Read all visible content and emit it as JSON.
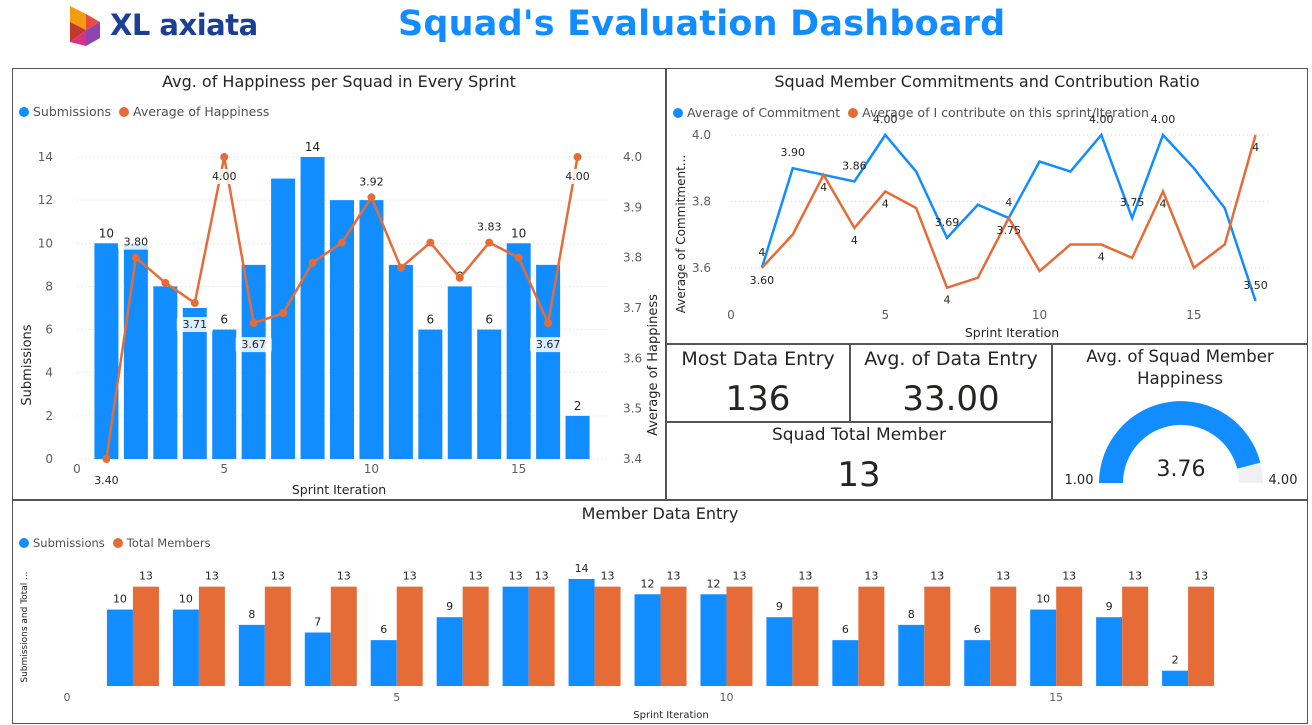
{
  "header": {
    "logo_text": "XL axiata",
    "title": "Squad's Evaluation Dashboard"
  },
  "colors": {
    "blue": "#118dff",
    "orange": "#e66c37",
    "title_blue": "#118dff",
    "logo_navy": "#1a3f95"
  },
  "happiness_chart": {
    "title": "Avg. of Happiness per Squad in Every Sprint",
    "legend": [
      "Submissions",
      "Average of Happiness"
    ],
    "xlabel": "Sprint Iteration",
    "ylabel_left": "Submissions",
    "ylabel_right": "Average of Happiness"
  },
  "commit_chart": {
    "title": "Squad Member Commitments and Contribution Ratio",
    "legend": [
      "Average of Commitment",
      "Average of I contribute on this sprint/Iteration"
    ],
    "xlabel": "Sprint Iteration",
    "ylabel": "Average of Commitment..."
  },
  "cards": {
    "most_entry_title": "Most Data Entry",
    "most_entry_value": "136",
    "avg_entry_title": "Avg. of Data Entry",
    "avg_entry_value": "33.00",
    "total_member_title": "Squad Total Member",
    "total_member_value": "13"
  },
  "gauge": {
    "title": "Avg. of Squad Member Happiness",
    "value_label": "3.76",
    "min_label": "1.00",
    "max_label": "4.00",
    "value": 3.76,
    "min": 1.0,
    "max": 4.0
  },
  "member_chart": {
    "title": "Member Data Entry",
    "legend": [
      "Submissions",
      "Total Members"
    ],
    "xlabel": "Sprint Iteration",
    "ylabel": "Submissions and Total ..."
  },
  "chart_data": [
    {
      "type": "bar",
      "title": "Avg. of Happiness per Squad in Every Sprint",
      "x": [
        1,
        2,
        3,
        4,
        5,
        6,
        7,
        8,
        9,
        10,
        11,
        12,
        13,
        14,
        15,
        16,
        17
      ],
      "xticks": [
        0,
        5,
        10,
        15
      ],
      "xlim": [
        0,
        18
      ],
      "series": [
        {
          "name": "Submissions",
          "kind": "bar",
          "axis": "left",
          "values": [
            10,
            10,
            8,
            7,
            6,
            9,
            13,
            14,
            12,
            12,
            9,
            6,
            8,
            6,
            10,
            9,
            2
          ],
          "labels": {
            "1": "10",
            "8": "14",
            "12": "6",
            "14": "6",
            "15": "10",
            "17": "2",
            "13": "8",
            "5": "6"
          }
        },
        {
          "name": "Average of Happiness",
          "kind": "line",
          "axis": "right",
          "values": [
            3.4,
            3.8,
            3.75,
            3.71,
            4.0,
            3.67,
            3.69,
            3.79,
            3.83,
            3.92,
            3.78,
            3.83,
            3.76,
            3.83,
            3.8,
            3.67,
            4.0
          ],
          "labels": {
            "1": "3.40",
            "2": "3.80",
            "4": "3.71",
            "5": "4.00",
            "6": "3.67",
            "10": "3.92",
            "14": "3.83",
            "16": "3.67",
            "17": "4.00"
          }
        }
      ],
      "ylim_left": [
        0,
        14
      ],
      "yticks_left": [
        0,
        2,
        4,
        6,
        8,
        10,
        12,
        14
      ],
      "ylim_right": [
        3.4,
        4.0
      ],
      "yticks_right": [
        3.4,
        3.5,
        3.6,
        3.7,
        3.8,
        3.9,
        4.0
      ],
      "grid": true,
      "legend_position": "top-left"
    },
    {
      "type": "line",
      "title": "Squad Member Commitments and Contribution Ratio",
      "x": [
        1,
        2,
        3,
        4,
        5,
        6,
        7,
        8,
        9,
        10,
        11,
        12,
        13,
        14,
        15,
        16,
        17
      ],
      "xticks": [
        0,
        5,
        10,
        15
      ],
      "xlim": [
        0,
        17.5
      ],
      "series": [
        {
          "name": "Average of Commitment",
          "values": [
            3.6,
            3.9,
            3.88,
            3.86,
            4.0,
            3.89,
            3.69,
            3.79,
            3.75,
            3.92,
            3.89,
            4.0,
            3.75,
            4.0,
            3.9,
            3.78,
            3.5
          ],
          "labels": {
            "1": "4",
            "2": "3.90",
            "4": "3.86",
            "5": "4.00",
            "7": "3.69",
            "9": "4",
            "12": "4.00",
            "13": "3.75",
            "14": "4.00",
            "17": "3.50"
          }
        },
        {
          "name": "Average of I contribute on this sprint/Iteration",
          "values": [
            3.6,
            3.7,
            3.88,
            3.72,
            3.83,
            3.78,
            3.54,
            3.57,
            3.75,
            3.59,
            3.67,
            3.67,
            3.63,
            3.83,
            3.6,
            3.67,
            4.0
          ],
          "labels": {
            "1": "3.60",
            "3": "4",
            "4": "4",
            "5": "4",
            "7": "4",
            "9": "3.75",
            "12": "4",
            "14": "4",
            "17": "4"
          }
        }
      ],
      "ylim": [
        3.5,
        4.0
      ],
      "yticks": [
        3.6,
        3.8,
        4.0
      ],
      "grid": true,
      "legend_position": "top-left"
    },
    {
      "type": "bar",
      "title": "Member Data Entry",
      "x": [
        1,
        2,
        3,
        4,
        5,
        6,
        7,
        8,
        9,
        10,
        11,
        12,
        13,
        14,
        15,
        16,
        17
      ],
      "xticks": [
        0,
        5,
        10,
        15
      ],
      "xlim": [
        0,
        18.5
      ],
      "series": [
        {
          "name": "Submissions",
          "values": [
            10,
            10,
            8,
            7,
            6,
            9,
            13,
            14,
            12,
            12,
            9,
            6,
            8,
            6,
            10,
            9,
            2
          ]
        },
        {
          "name": "Total Members",
          "values": [
            13,
            13,
            13,
            13,
            13,
            13,
            13,
            13,
            13,
            13,
            13,
            13,
            13,
            13,
            13,
            13,
            13
          ]
        }
      ],
      "ylim": [
        0,
        14
      ],
      "grid": false,
      "legend_position": "top-left"
    }
  ]
}
